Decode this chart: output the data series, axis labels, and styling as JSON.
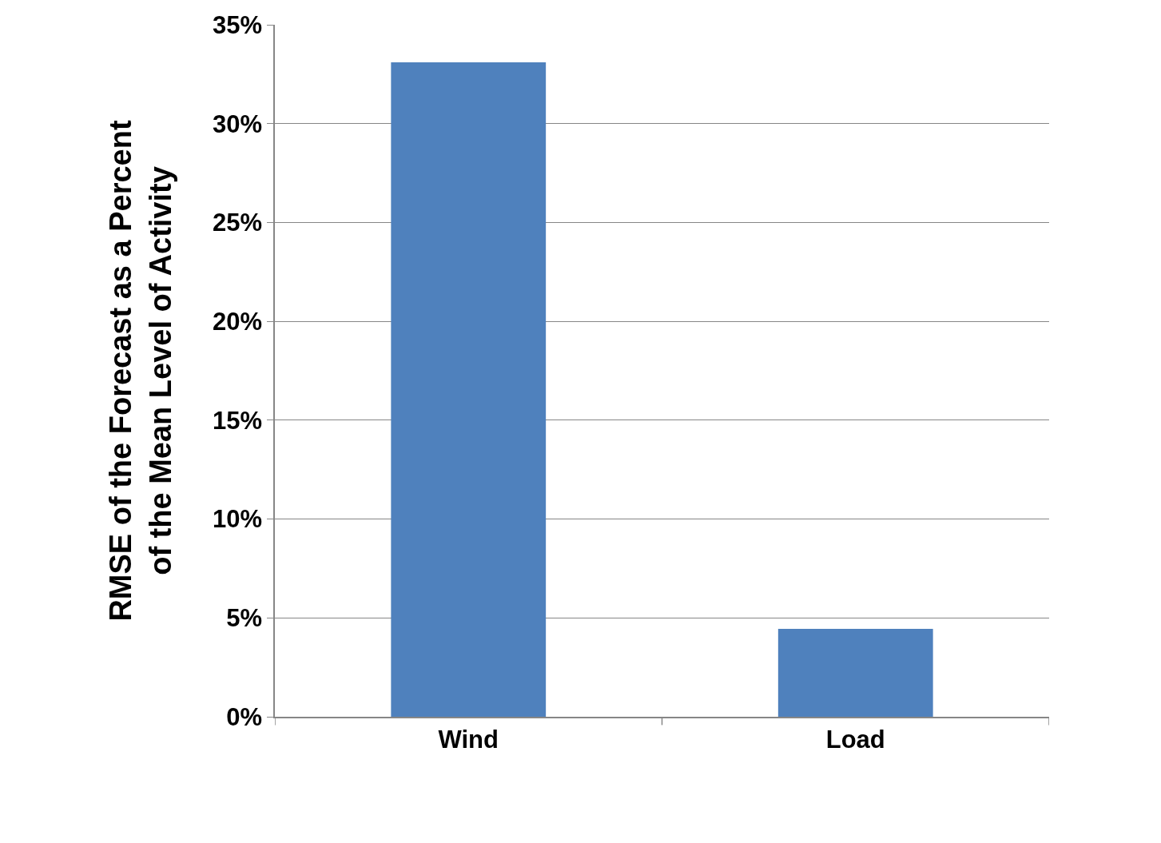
{
  "chart_data": {
    "type": "bar",
    "ylabel": "RMSE of the Forecast as a Percent\nof the Mean Level of Activity",
    "categories": [
      "Wind",
      "Load"
    ],
    "values": [
      33.1,
      4.45
    ],
    "color": "#4f81bd",
    "ylim": [
      0,
      35
    ],
    "yticks": [
      {
        "value": 0,
        "label": "0%"
      },
      {
        "value": 5,
        "label": "5%"
      },
      {
        "value": 10,
        "label": "10%"
      },
      {
        "value": 15,
        "label": "15%"
      },
      {
        "value": 20,
        "label": "20%"
      },
      {
        "value": 25,
        "label": "25%"
      },
      {
        "value": 30,
        "label": "30%"
      },
      {
        "value": 35,
        "label": "35%"
      }
    ],
    "grid": "y",
    "legend": false
  }
}
